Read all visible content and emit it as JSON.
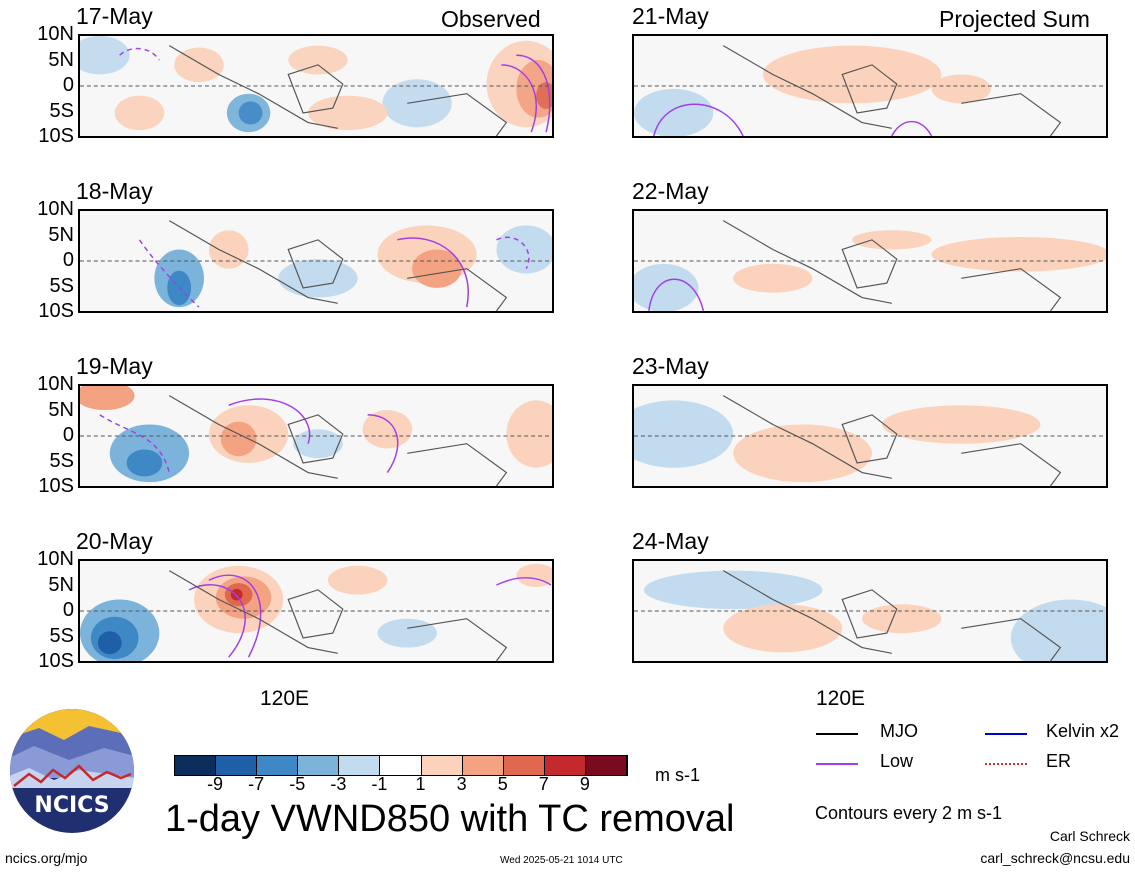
{
  "panels": [
    {
      "date": "17-May",
      "corner": "Observed"
    },
    {
      "date": "18-May",
      "corner": ""
    },
    {
      "date": "19-May",
      "corner": ""
    },
    {
      "date": "20-May",
      "corner": ""
    },
    {
      "date": "21-May",
      "corner": "Projected Sum"
    },
    {
      "date": "22-May",
      "corner": ""
    },
    {
      "date": "23-May",
      "corner": ""
    },
    {
      "date": "24-May",
      "corner": ""
    }
  ],
  "lat_labels": [
    "10N",
    "5N",
    "0",
    "5S",
    "10S"
  ],
  "lon_label": "120E",
  "colorbar": {
    "labels": [
      "-9",
      "-7",
      "-5",
      "-3",
      "-1",
      "1",
      "3",
      "5",
      "7",
      "9"
    ],
    "units": "m s-1",
    "colors": [
      "#0b2e5c",
      "#1f5fa8",
      "#3f88c6",
      "#7bb3da",
      "#c3dbee",
      "#ffffff",
      "#fbd3bd",
      "#f3a282",
      "#e0684f",
      "#c42a2d",
      "#7a0a1e"
    ]
  },
  "title": "1-day VWND850 with TC removal",
  "legend": {
    "items": [
      {
        "label": "MJO",
        "color": "#000000"
      },
      {
        "label": "Low",
        "color": "#a23ee8"
      },
      {
        "label": "Kelvin x2",
        "color": "#0000cc"
      },
      {
        "label": "ER",
        "color": "#d42a2a"
      }
    ],
    "contour_note": "Contours every 2 m s-1"
  },
  "logo_text": "NCICS",
  "footer": {
    "left": "ncics.org/mjo",
    "center": "Wed 2025-05-21 1014 UTC",
    "author": "Carl Schreck",
    "email": "carl_schreck@ncsu.edu"
  }
}
